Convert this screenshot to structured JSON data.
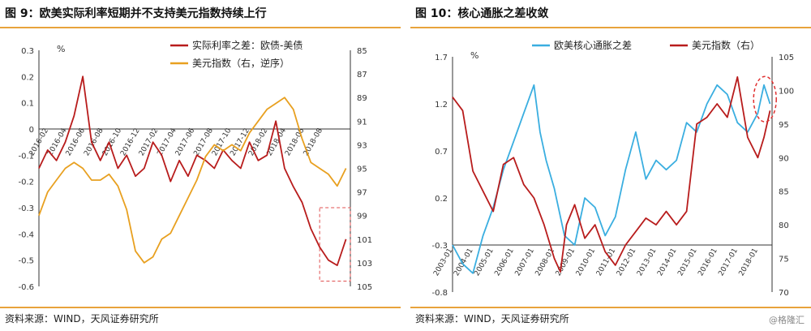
{
  "chart_data": [
    {
      "type": "line",
      "title": "图 9：欧美实际利率短期并不支持美元指数持续上行",
      "source": "资料来源：WIND，天风证券研究所",
      "y_left_unit": "%",
      "y_left_range": [
        -0.6,
        0.3
      ],
      "y_left_ticks": [
        "0.3",
        "0.2",
        "0.1",
        "0",
        "-0.1",
        "-0.2",
        "-0.3",
        "-0.4",
        "-0.5",
        "-0.6"
      ],
      "y_right_range": [
        105,
        85
      ],
      "y_right_ticks": [
        "85",
        "87",
        "89",
        "91",
        "93",
        "95",
        "97",
        "99",
        "101",
        "103",
        "105"
      ],
      "x_range": [
        2016.04,
        2018.88
      ],
      "x_ticks": [
        {
          "x": 2016.125,
          "label": "2016-02"
        },
        {
          "x": 2016.292,
          "label": "2016-04"
        },
        {
          "x": 2016.458,
          "label": "2016-06"
        },
        {
          "x": 2016.625,
          "label": "2016-08"
        },
        {
          "x": 2016.792,
          "label": "2016-10"
        },
        {
          "x": 2016.958,
          "label": "2016-12"
        },
        {
          "x": 2017.125,
          "label": "2017-02"
        },
        {
          "x": 2017.292,
          "label": "2017-04"
        },
        {
          "x": 2017.458,
          "label": "2017-06"
        },
        {
          "x": 2017.625,
          "label": "2017-08"
        },
        {
          "x": 2017.792,
          "label": "2017-10"
        },
        {
          "x": 2017.958,
          "label": "2017-12"
        },
        {
          "x": 2018.125,
          "label": "2018-02"
        },
        {
          "x": 2018.292,
          "label": "2018-04"
        },
        {
          "x": 2018.458,
          "label": "2018-06"
        },
        {
          "x": 2018.625,
          "label": "2018-08"
        }
      ],
      "legend_position": "top-right",
      "annotation": "dashed box highlighting recent divergence",
      "series": [
        {
          "name": "实际利率之差：欧债-美债",
          "axis": "left",
          "color": "#b81c1c",
          "x": [
            2016.04,
            2016.12,
            2016.2,
            2016.28,
            2016.36,
            2016.44,
            2016.52,
            2016.6,
            2016.68,
            2016.76,
            2016.84,
            2016.92,
            2017.0,
            2017.08,
            2017.16,
            2017.24,
            2017.32,
            2017.4,
            2017.48,
            2017.56,
            2017.64,
            2017.72,
            2017.8,
            2017.88,
            2017.96,
            2018.04,
            2018.12,
            2018.2,
            2018.28,
            2018.36,
            2018.44,
            2018.52,
            2018.6,
            2018.68,
            2018.76,
            2018.84
          ],
          "y": [
            -0.15,
            -0.08,
            -0.12,
            -0.05,
            0.05,
            0.2,
            -0.05,
            -0.12,
            -0.05,
            -0.15,
            -0.1,
            -0.18,
            -0.15,
            -0.05,
            -0.1,
            -0.2,
            -0.12,
            -0.18,
            -0.1,
            -0.12,
            -0.15,
            -0.08,
            -0.12,
            -0.15,
            -0.05,
            -0.12,
            -0.1,
            0.03,
            -0.15,
            -0.22,
            -0.28,
            -0.38,
            -0.45,
            -0.5,
            -0.52,
            -0.42
          ]
        },
        {
          "name": "美元指数（右，逆序）",
          "axis": "right",
          "color": "#e8a020",
          "x": [
            2016.04,
            2016.12,
            2016.2,
            2016.28,
            2016.36,
            2016.44,
            2016.52,
            2016.6,
            2016.68,
            2016.76,
            2016.84,
            2016.92,
            2017.0,
            2017.08,
            2017.16,
            2017.24,
            2017.32,
            2017.4,
            2017.48,
            2017.56,
            2017.64,
            2017.72,
            2017.8,
            2017.88,
            2017.96,
            2018.04,
            2018.12,
            2018.2,
            2018.28,
            2018.36,
            2018.44,
            2018.52,
            2018.6,
            2018.68,
            2018.76,
            2018.84
          ],
          "y": [
            99,
            97,
            96,
            95,
            94.5,
            95,
            96,
            96,
            95.5,
            96.5,
            98.5,
            102,
            103,
            102.5,
            101,
            100.5,
            99,
            97.5,
            96,
            94,
            93,
            93.5,
            93,
            93.5,
            92,
            91,
            90,
            89.5,
            89,
            90,
            92.5,
            94.5,
            95,
            95.5,
            96.5,
            95
          ]
        }
      ]
    },
    {
      "type": "line",
      "title": "图 10：核心通胀之差收敛",
      "source": "资料来源：WIND，天风证券研究所",
      "y_left_unit": "%",
      "y_left_range": [
        -0.8,
        1.7
      ],
      "y_left_ticks": [
        "1.7",
        "1.2",
        "0.7",
        "0.2",
        "-0.3",
        "-0.8"
      ],
      "y_right_range": [
        70,
        105
      ],
      "y_right_ticks": [
        "105",
        "100",
        "95",
        "90",
        "85",
        "80",
        "75",
        "70"
      ],
      "x_range": [
        2003.0,
        2018.7
      ],
      "x_ticks": [
        {
          "x": 2003.0,
          "label": "2003-01"
        },
        {
          "x": 2004.0,
          "label": "2004-01"
        },
        {
          "x": 2005.0,
          "label": "2005-01"
        },
        {
          "x": 2006.0,
          "label": "2006-01"
        },
        {
          "x": 2007.0,
          "label": "2007-01"
        },
        {
          "x": 2008.0,
          "label": "2008-01"
        },
        {
          "x": 2009.0,
          "label": "2009-01"
        },
        {
          "x": 2010.0,
          "label": "2010-01"
        },
        {
          "x": 2011.0,
          "label": "2011-01"
        },
        {
          "x": 2012.0,
          "label": "2012-01"
        },
        {
          "x": 2013.0,
          "label": "2013-01"
        },
        {
          "x": 2014.0,
          "label": "2014-01"
        },
        {
          "x": 2015.0,
          "label": "2015-01"
        },
        {
          "x": 2016.0,
          "label": "2016-01"
        },
        {
          "x": 2017.0,
          "label": "2017-01"
        },
        {
          "x": 2018.0,
          "label": "2018-01"
        }
      ],
      "legend_position": "top",
      "annotation": "dashed ellipse highlighting latest convergence",
      "series": [
        {
          "name": "欧美核心通胀之差",
          "axis": "left",
          "color": "#3aaee0",
          "x": [
            2003.0,
            2003.5,
            2004.0,
            2004.5,
            2005.0,
            2005.5,
            2006.0,
            2006.5,
            2007.0,
            2007.3,
            2007.6,
            2008.0,
            2008.5,
            2009.0,
            2009.5,
            2010.0,
            2010.5,
            2011.0,
            2011.5,
            2012.0,
            2012.5,
            2013.0,
            2013.5,
            2014.0,
            2014.5,
            2015.0,
            2015.5,
            2016.0,
            2016.5,
            2017.0,
            2017.5,
            2018.0,
            2018.3,
            2018.6
          ],
          "y": [
            -0.3,
            -0.5,
            -0.6,
            -0.2,
            0.1,
            0.5,
            0.8,
            1.1,
            1.4,
            0.9,
            0.6,
            0.3,
            -0.2,
            -0.3,
            0.2,
            0.1,
            -0.2,
            0.0,
            0.5,
            0.9,
            0.4,
            0.6,
            0.5,
            0.6,
            1.0,
            0.9,
            1.2,
            1.4,
            1.3,
            1.0,
            0.9,
            1.1,
            1.4,
            1.2
          ]
        },
        {
          "name": "美元指数（右）",
          "axis": "right",
          "color": "#b81c1c",
          "x": [
            2003.0,
            2003.5,
            2004.0,
            2004.5,
            2005.0,
            2005.5,
            2006.0,
            2006.5,
            2007.0,
            2007.5,
            2008.0,
            2008.3,
            2008.6,
            2009.0,
            2009.5,
            2010.0,
            2010.5,
            2011.0,
            2011.5,
            2012.0,
            2012.5,
            2013.0,
            2013.5,
            2014.0,
            2014.5,
            2015.0,
            2015.5,
            2016.0,
            2016.5,
            2017.0,
            2017.5,
            2018.0,
            2018.3,
            2018.6
          ],
          "y": [
            99,
            97,
            88,
            85,
            82,
            89,
            90,
            86,
            84,
            80,
            75,
            73,
            80,
            83,
            78,
            80,
            76,
            74,
            77,
            79,
            81,
            80,
            82,
            80,
            82,
            95,
            96,
            98,
            96,
            102,
            93,
            90,
            93,
            97
          ]
        }
      ]
    }
  ],
  "watermark": "@格隆汇"
}
